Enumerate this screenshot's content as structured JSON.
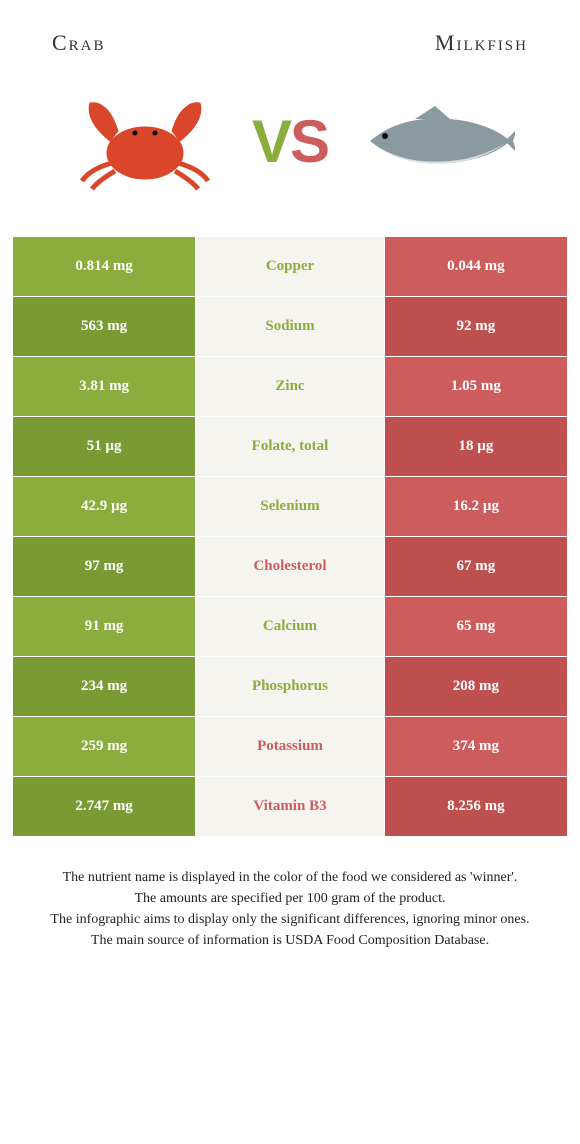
{
  "colors": {
    "food1": "#8aad3e",
    "food1_alt": "#7a9b34",
    "food2": "#cd5c5c",
    "food2_alt": "#be5050",
    "mid_bg": "#f6f4ef",
    "vs_v": "#8aad3e",
    "vs_s": "#cd5c5c",
    "crab_body": "#d9462a",
    "fish_body": "#8a9aa0",
    "fish_belly": "#d8dde0"
  },
  "header": {
    "food1": "Crab",
    "food2": "Milkfish",
    "v": "V",
    "s": "S"
  },
  "rows": [
    {
      "nutrient": "Copper",
      "v1": "0.814 mg",
      "v2": "0.044 mg",
      "winner": 1
    },
    {
      "nutrient": "Sodium",
      "v1": "563 mg",
      "v2": "92 mg",
      "winner": 1
    },
    {
      "nutrient": "Zinc",
      "v1": "3.81 mg",
      "v2": "1.05 mg",
      "winner": 1
    },
    {
      "nutrient": "Folate, total",
      "v1": "51 µg",
      "v2": "18 µg",
      "winner": 1
    },
    {
      "nutrient": "Selenium",
      "v1": "42.9 µg",
      "v2": "16.2 µg",
      "winner": 1
    },
    {
      "nutrient": "Cholesterol",
      "v1": "97 mg",
      "v2": "67 mg",
      "winner": 2
    },
    {
      "nutrient": "Calcium",
      "v1": "91 mg",
      "v2": "65 mg",
      "winner": 1
    },
    {
      "nutrient": "Phosphorus",
      "v1": "234 mg",
      "v2": "208 mg",
      "winner": 1
    },
    {
      "nutrient": "Potassium",
      "v1": "259 mg",
      "v2": "374 mg",
      "winner": 2
    },
    {
      "nutrient": "Vitamin B3",
      "v1": "2.747 mg",
      "v2": "8.256 mg",
      "winner": 2
    }
  ],
  "footer": {
    "l1": "The nutrient name is displayed in the color of the food we considered as 'winner'.",
    "l2": "The amounts are specified per 100 gram of the product.",
    "l3": "The infographic aims to display only the significant differences, ignoring minor ones.",
    "l4": "The main source of information is USDA Food Composition Database."
  }
}
